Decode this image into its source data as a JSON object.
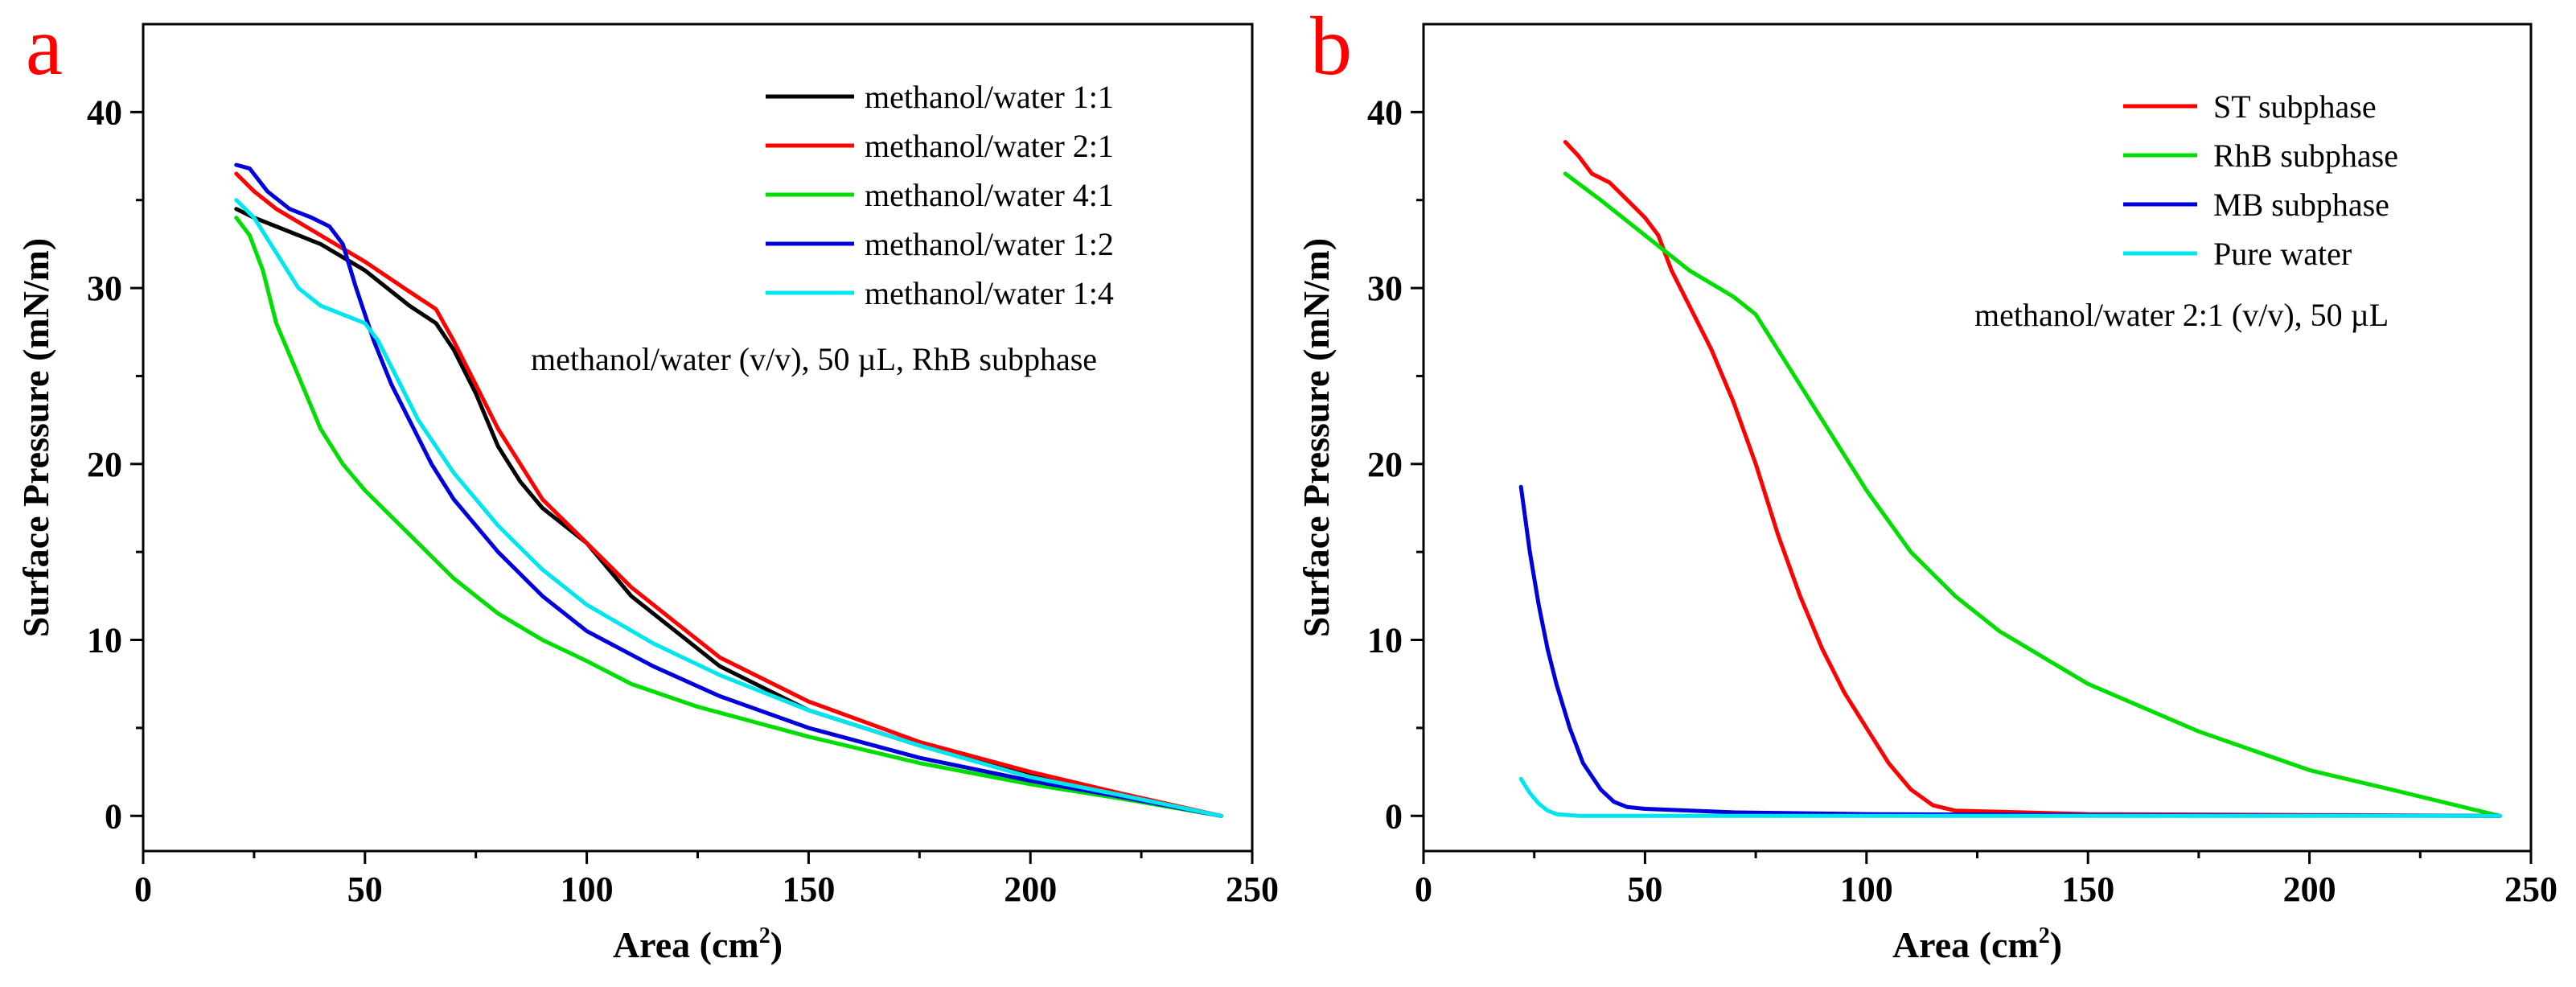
{
  "chart_data": [
    {
      "panel_label": "a",
      "type": "line",
      "xlabel": "Area (cm",
      "xlabel_sup": "2",
      "xlabel_tail": ")",
      "ylabel": "Surface Pressure (mN/m)",
      "xlim": [
        0,
        250
      ],
      "ylim": [
        -2,
        45
      ],
      "xticks": [
        0,
        50,
        100,
        150,
        200,
        250
      ],
      "yticks": [
        0,
        10,
        20,
        30,
        40
      ],
      "annotation": "methanol/water (v/v), 50 µL, RhB subphase",
      "legend_position": "top-right",
      "series": [
        {
          "name": "methanol/water 1:1",
          "color": "#000000",
          "points": [
            [
              21,
              34.5
            ],
            [
              25,
              34.0
            ],
            [
              30,
              33.5
            ],
            [
              40,
              32.5
            ],
            [
              50,
              31.0
            ],
            [
              60,
              29.0
            ],
            [
              66,
              28.0
            ],
            [
              70,
              26.5
            ],
            [
              75,
              24.0
            ],
            [
              80,
              21.0
            ],
            [
              85,
              19.0
            ],
            [
              90,
              17.5
            ],
            [
              100,
              15.5
            ],
            [
              110,
              12.5
            ],
            [
              120,
              10.5
            ],
            [
              130,
              8.5
            ],
            [
              150,
              6.0
            ],
            [
              175,
              4.0
            ],
            [
              200,
              2.3
            ],
            [
              220,
              1.2
            ],
            [
              243,
              0
            ]
          ]
        },
        {
          "name": "methanol/water 2:1",
          "color": "#ff0000",
          "points": [
            [
              21,
              36.5
            ],
            [
              25,
              35.5
            ],
            [
              30,
              34.5
            ],
            [
              40,
              33.0
            ],
            [
              50,
              31.5
            ],
            [
              60,
              29.8
            ],
            [
              66,
              28.8
            ],
            [
              70,
              27.0
            ],
            [
              75,
              24.5
            ],
            [
              80,
              22.0
            ],
            [
              85,
              20.0
            ],
            [
              90,
              18.0
            ],
            [
              100,
              15.5
            ],
            [
              110,
              13.0
            ],
            [
              120,
              11.0
            ],
            [
              130,
              9.0
            ],
            [
              150,
              6.5
            ],
            [
              175,
              4.2
            ],
            [
              200,
              2.5
            ],
            [
              220,
              1.3
            ],
            [
              243,
              0
            ]
          ]
        },
        {
          "name": "methanol/water 4:1",
          "color": "#00dd00",
          "points": [
            [
              21,
              34.0
            ],
            [
              24,
              33.0
            ],
            [
              27,
              31.0
            ],
            [
              30,
              28.0
            ],
            [
              35,
              25.0
            ],
            [
              40,
              22.0
            ],
            [
              45,
              20.0
            ],
            [
              50,
              18.5
            ],
            [
              60,
              16.0
            ],
            [
              70,
              13.5
            ],
            [
              80,
              11.5
            ],
            [
              90,
              10.0
            ],
            [
              100,
              8.8
            ],
            [
              110,
              7.5
            ],
            [
              125,
              6.2
            ],
            [
              150,
              4.5
            ],
            [
              175,
              3.0
            ],
            [
              200,
              1.8
            ],
            [
              220,
              1.0
            ],
            [
              243,
              0
            ]
          ]
        },
        {
          "name": "methanol/water 1:2",
          "color": "#0000dd",
          "points": [
            [
              21,
              37.0
            ],
            [
              24,
              36.8
            ],
            [
              28,
              35.5
            ],
            [
              33,
              34.5
            ],
            [
              38,
              34.0
            ],
            [
              42,
              33.5
            ],
            [
              45,
              32.5
            ],
            [
              48,
              30.0
            ],
            [
              52,
              27.0
            ],
            [
              56,
              24.5
            ],
            [
              60,
              22.5
            ],
            [
              65,
              20.0
            ],
            [
              70,
              18.0
            ],
            [
              80,
              15.0
            ],
            [
              90,
              12.5
            ],
            [
              100,
              10.5
            ],
            [
              115,
              8.5
            ],
            [
              130,
              6.8
            ],
            [
              150,
              5.0
            ],
            [
              175,
              3.3
            ],
            [
              200,
              2.0
            ],
            [
              220,
              1.1
            ],
            [
              243,
              0
            ]
          ]
        },
        {
          "name": "methanol/water 1:4",
          "color": "#00e5ee",
          "points": [
            [
              21,
              35.0
            ],
            [
              25,
              34.0
            ],
            [
              30,
              32.0
            ],
            [
              35,
              30.0
            ],
            [
              40,
              29.0
            ],
            [
              45,
              28.5
            ],
            [
              50,
              28.0
            ],
            [
              53,
              27.0
            ],
            [
              57,
              25.0
            ],
            [
              62,
              22.5
            ],
            [
              70,
              19.5
            ],
            [
              80,
              16.5
            ],
            [
              90,
              14.0
            ],
            [
              100,
              12.0
            ],
            [
              115,
              9.8
            ],
            [
              130,
              8.0
            ],
            [
              150,
              6.0
            ],
            [
              175,
              4.0
            ],
            [
              200,
              2.2
            ],
            [
              220,
              1.2
            ],
            [
              243,
              0
            ]
          ]
        }
      ]
    },
    {
      "panel_label": "b",
      "type": "line",
      "xlabel": "Area (cm",
      "xlabel_sup": "2",
      "xlabel_tail": ")",
      "ylabel": "Surface Pressure (mN/m)",
      "xlim": [
        0,
        250
      ],
      "ylim": [
        -2,
        45
      ],
      "xticks": [
        0,
        50,
        100,
        150,
        200,
        250
      ],
      "yticks": [
        0,
        10,
        20,
        30,
        40
      ],
      "annotation": "methanol/water 2:1 (v/v), 50 µL",
      "legend_position": "top-right",
      "series": [
        {
          "name": "ST subphase",
          "color": "#ff0000",
          "points": [
            [
              32,
              38.3
            ],
            [
              35,
              37.5
            ],
            [
              38,
              36.5
            ],
            [
              42,
              36.0
            ],
            [
              46,
              35.0
            ],
            [
              50,
              34.0
            ],
            [
              53,
              33.0
            ],
            [
              56,
              31.0
            ],
            [
              60,
              29.0
            ],
            [
              65,
              26.5
            ],
            [
              70,
              23.5
            ],
            [
              75,
              20.0
            ],
            [
              80,
              16.0
            ],
            [
              85,
              12.5
            ],
            [
              90,
              9.5
            ],
            [
              95,
              7.0
            ],
            [
              100,
              5.0
            ],
            [
              105,
              3.0
            ],
            [
              110,
              1.5
            ],
            [
              115,
              0.6
            ],
            [
              120,
              0.3
            ],
            [
              150,
              0.1
            ],
            [
              200,
              0.05
            ],
            [
              243,
              0
            ]
          ]
        },
        {
          "name": "RhB subphase",
          "color": "#00dd00",
          "points": [
            [
              32,
              36.5
            ],
            [
              40,
              35.0
            ],
            [
              50,
              33.0
            ],
            [
              60,
              31.0
            ],
            [
              70,
              29.5
            ],
            [
              75,
              28.5
            ],
            [
              80,
              26.5
            ],
            [
              85,
              24.5
            ],
            [
              90,
              22.5
            ],
            [
              100,
              18.5
            ],
            [
              110,
              15.0
            ],
            [
              120,
              12.5
            ],
            [
              130,
              10.5
            ],
            [
              150,
              7.5
            ],
            [
              175,
              4.8
            ],
            [
              200,
              2.6
            ],
            [
              220,
              1.4
            ],
            [
              243,
              0
            ]
          ]
        },
        {
          "name": "MB subphase",
          "color": "#0000dd",
          "points": [
            [
              22,
              18.7
            ],
            [
              24,
              15.0
            ],
            [
              26,
              12.0
            ],
            [
              28,
              9.5
            ],
            [
              30,
              7.5
            ],
            [
              33,
              5.0
            ],
            [
              36,
              3.0
            ],
            [
              40,
              1.5
            ],
            [
              43,
              0.8
            ],
            [
              46,
              0.5
            ],
            [
              50,
              0.4
            ],
            [
              70,
              0.2
            ],
            [
              100,
              0.1
            ],
            [
              150,
              0.05
            ],
            [
              243,
              0
            ]
          ]
        },
        {
          "name": "Pure water",
          "color": "#00e5ee",
          "points": [
            [
              22,
              2.1
            ],
            [
              24,
              1.3
            ],
            [
              26,
              0.7
            ],
            [
              28,
              0.3
            ],
            [
              30,
              0.1
            ],
            [
              35,
              0.0
            ],
            [
              243,
              0
            ]
          ]
        }
      ]
    }
  ]
}
